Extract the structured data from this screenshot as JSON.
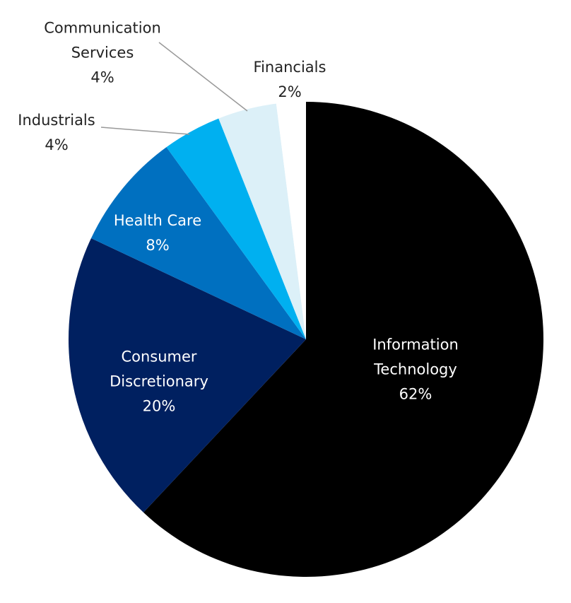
{
  "chart_data": {
    "type": "pie",
    "categories": [
      "Information Technology",
      "Consumer Discretionary",
      "Health Care",
      "Industrials",
      "Communication Services",
      "Financials"
    ],
    "values": [
      62,
      20,
      8,
      4,
      4,
      2
    ],
    "value_labels": [
      "62%",
      "20%",
      "8%",
      "4%",
      "4%",
      "2%"
    ],
    "colors": [
      "#000000",
      "#002060",
      "#0070c0",
      "#00b0f0",
      "#dcf0f8",
      "#ffffff"
    ]
  }
}
